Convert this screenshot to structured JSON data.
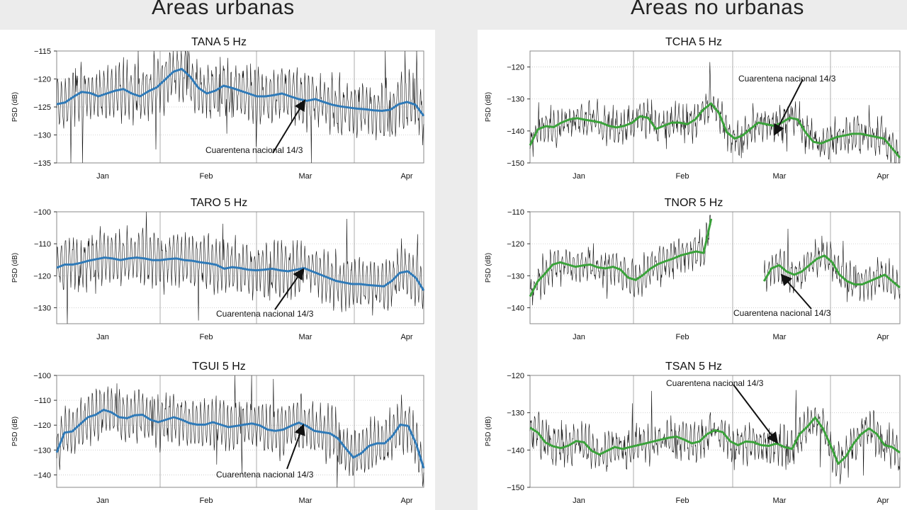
{
  "header": {
    "left_title": "Áreas urbanas",
    "right_title": "Áreas no urbanas"
  },
  "colors": {
    "urban_smooth": "#2f7ab8",
    "rural_smooth": "#3aa23a",
    "raw": "#111111",
    "grid": "#c8c8c8"
  },
  "chart_data": [
    {
      "type": "line",
      "title": "TANA 5 Hz",
      "ylabel": "PSD (dB)",
      "ylim": [
        -135,
        -115
      ],
      "yticks": [
        -115,
        -120,
        -125,
        -130,
        -135
      ],
      "xticks": [
        "Jan",
        "Feb",
        "Mar",
        "Apr"
      ],
      "annotation": "Cuarentena nacional 14/3",
      "series": [
        {
          "role": "raw",
          "center": -125,
          "amp": 4.5,
          "noise": 1.8,
          "values": []
        },
        {
          "role": "smooth",
          "values": [
            -124.5,
            -124.2,
            -123.2,
            -122.3,
            -122.5,
            -123.1,
            -122.6,
            -122.1,
            -121.8,
            -122.6,
            -123.1,
            -122.2,
            -121.5,
            -120.1,
            -118.7,
            -118.2,
            -119.6,
            -121.6,
            -122.6,
            -122.1,
            -121.2,
            -121.6,
            -122.1,
            -122.6,
            -123.1,
            -123.1,
            -122.9,
            -122.6,
            -123.1,
            -123.6,
            -123.9,
            -123.6,
            -124.1,
            -124.6,
            -124.9,
            -125.1,
            -125.3,
            -125.4,
            -125.6,
            -125.7,
            -125.5,
            -124.5,
            -124.1,
            -124.6,
            -126.6
          ]
        }
      ]
    },
    {
      "type": "line",
      "title": "TARO 5 Hz",
      "ylabel": "PSD (dB)",
      "ylim": [
        -135,
        -100
      ],
      "yticks": [
        -100,
        -110,
        -120,
        -130
      ],
      "xticks": [
        "Jan",
        "Feb",
        "Mar",
        "Apr"
      ],
      "annotation": "Cuarentena nacional 14/3",
      "series": [
        {
          "role": "raw",
          "center": -116,
          "amp": 8,
          "noise": 2.5,
          "values": []
        },
        {
          "role": "smooth",
          "values": [
            -117.5,
            -116.5,
            -116.5,
            -116.0,
            -115.3,
            -114.8,
            -114.3,
            -114.6,
            -115.1,
            -114.6,
            -114.3,
            -114.6,
            -115.1,
            -115.1,
            -114.8,
            -114.6,
            -115.1,
            -115.3,
            -115.8,
            -116.1,
            -116.6,
            -117.8,
            -117.3,
            -117.6,
            -118.1,
            -118.3,
            -118.1,
            -117.8,
            -118.3,
            -118.6,
            -118.1,
            -117.6,
            -118.6,
            -119.6,
            -120.6,
            -121.6,
            -122.1,
            -122.6,
            -122.6,
            -122.9,
            -123.1,
            -123.3,
            -121.6,
            -119.1,
            -118.6,
            -120.6,
            -124.6
          ]
        }
      ]
    },
    {
      "type": "line",
      "title": "TGUI 5 Hz",
      "ylabel": "PSD (dB)",
      "ylim": [
        -145,
        -100
      ],
      "yticks": [
        -100,
        -110,
        -120,
        -130,
        -140
      ],
      "xticks": [
        "Jan",
        "Feb",
        "Mar",
        "Apr"
      ],
      "annotation": "Cuarentena nacional 14/3",
      "series": [
        {
          "role": "raw",
          "center": -120,
          "amp": 10,
          "noise": 2.5,
          "values": []
        },
        {
          "role": "smooth",
          "values": [
            -131.0,
            -123.0,
            -122.5,
            -119.6,
            -116.8,
            -115.8,
            -113.8,
            -114.8,
            -116.8,
            -117.2,
            -116.0,
            -115.8,
            -117.8,
            -118.8,
            -117.8,
            -116.8,
            -117.8,
            -119.2,
            -119.8,
            -119.8,
            -118.8,
            -119.8,
            -120.8,
            -120.3,
            -119.8,
            -119.3,
            -120.1,
            -121.8,
            -122.3,
            -121.8,
            -120.3,
            -119.0,
            -120.3,
            -122.3,
            -122.8,
            -123.3,
            -125.3,
            -129.3,
            -133.0,
            -131.3,
            -128.3,
            -127.3,
            -127.3,
            -124.3,
            -119.8,
            -120.3,
            -127.3,
            -137.3
          ]
        }
      ]
    },
    {
      "type": "line",
      "title": "TCHA 5 Hz",
      "ylabel": "PSD (dB)",
      "ylim": [
        -150,
        -115
      ],
      "yticks": [
        -120,
        -130,
        -140,
        -150
      ],
      "xticks": [
        "Jan",
        "Feb",
        "Mar",
        "Apr"
      ],
      "annotation": "Cuarentena nacional 14/3",
      "series": [
        {
          "role": "raw",
          "center": -139,
          "amp": 4,
          "noise": 3.5,
          "values": []
        },
        {
          "role": "smooth",
          "values": [
            -144.5,
            -139.5,
            -138.5,
            -138.8,
            -137.4,
            -136.4,
            -136.0,
            -136.5,
            -136.9,
            -137.4,
            -138.4,
            -138.9,
            -138.4,
            -137.4,
            -135.4,
            -135.9,
            -139.4,
            -138.4,
            -137.4,
            -137.4,
            -137.9,
            -136.4,
            -133.4,
            -131.4,
            -134.4,
            -140.4,
            -142.4,
            -141.4,
            -139.4,
            -137.4,
            -137.9,
            -138.4,
            -137.4,
            -135.9,
            -136.4,
            -140.4,
            -143.4,
            -143.9,
            -142.9,
            -141.9,
            -141.4,
            -140.9,
            -140.9,
            -141.4,
            -141.9,
            -142.4,
            -145.4,
            -148.4
          ]
        }
      ]
    },
    {
      "type": "line",
      "title": "TNOR 5 Hz",
      "ylabel": "PSD (dB)",
      "ylim": [
        -145,
        -110
      ],
      "yticks": [
        -110,
        -120,
        -130,
        -140
      ],
      "xticks": [
        "Jan",
        "Feb",
        "Mar",
        "Apr"
      ],
      "annotation": "Cuarentena nacional 14/3",
      "series": [
        {
          "role": "raw",
          "center": -128,
          "amp": 4.5,
          "noise": 2.5,
          "values": []
        },
        {
          "role": "smooth",
          "values": [
            -136.5,
            -131.8,
            -129.3,
            -126.5,
            -125.8,
            -126.5,
            -127.2,
            -126.8,
            -126.5,
            -127.4,
            -127.7,
            -127.2,
            -128.1,
            -130.6,
            -131.3,
            -129.7,
            -127.7,
            -126.3,
            -125.4,
            -124.6,
            -123.6,
            -123.0,
            -122.4,
            -122.9,
            -112.2,
            null,
            null,
            null,
            null,
            null,
            null,
            -131.7,
            -127.7,
            -126.7,
            -128.7,
            -129.7,
            -128.7,
            -126.7,
            -124.7,
            -123.7,
            -125.7,
            -129.7,
            -131.7,
            -132.7,
            -132.7,
            -131.7,
            -130.7,
            -129.7,
            -131.7,
            -133.7
          ]
        }
      ]
    },
    {
      "type": "line",
      "title": "TSAN 5 Hz",
      "ylabel": "PSD (dB)",
      "ylim": [
        -150,
        -120
      ],
      "yticks": [
        -120,
        -130,
        -140,
        -150
      ],
      "xticks": [
        "Jan",
        "Feb",
        "Mar",
        "Apr"
      ],
      "annotation": "Cuarentena nacional 14/3",
      "series": [
        {
          "role": "raw",
          "center": -138,
          "amp": 4,
          "noise": 3,
          "values": []
        },
        {
          "role": "smooth",
          "values": [
            -134.0,
            -135.3,
            -138.0,
            -139.0,
            -139.5,
            -138.8,
            -137.6,
            -137.9,
            -140.2,
            -141.2,
            -140.2,
            -139.2,
            -139.7,
            -139.2,
            -138.7,
            -138.2,
            -137.7,
            -137.2,
            -136.7,
            -136.4,
            -137.2,
            -138.2,
            -137.7,
            -135.7,
            -134.7,
            -135.2,
            -137.7,
            -138.7,
            -137.7,
            -137.9,
            -138.7,
            -138.9,
            -138.2,
            -139.2,
            -139.7,
            -135.7,
            -133.7,
            -131.3,
            -134.2,
            -138.7,
            -143.7,
            -141.7,
            -138.2,
            -135.7,
            -134.2,
            -135.7,
            -138.7,
            -139.2,
            -140.7
          ]
        }
      ]
    }
  ]
}
